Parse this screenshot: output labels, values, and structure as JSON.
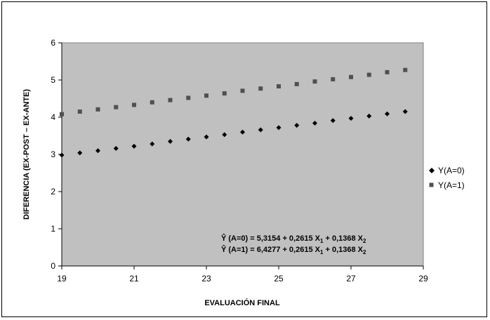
{
  "chart_data": {
    "type": "scatter",
    "title": "",
    "xlabel": "EVALUACIÓN FINAL",
    "ylabel": "DIFERENCIA (EX-POST – EX-ANTE)",
    "xlim": [
      19,
      29
    ],
    "ylim": [
      0,
      6
    ],
    "xticks": [
      "19",
      "21",
      "23",
      "25",
      "27",
      "29"
    ],
    "yticks": [
      "0",
      "1",
      "2",
      "3",
      "4",
      "5",
      "6"
    ],
    "grid": false,
    "legend_position": "right",
    "plot_background": "#c0c0c0",
    "series": [
      {
        "name": "Y(A=0)",
        "marker": "diamond",
        "color": "#000000",
        "x": [
          19,
          19.5,
          20,
          20.5,
          21,
          21.5,
          22,
          22.5,
          23,
          23.5,
          24,
          24.5,
          25,
          25.5,
          26,
          26.5,
          27,
          27.5,
          28,
          28.5
        ],
        "y": [
          2.98,
          3.04,
          3.1,
          3.16,
          3.22,
          3.28,
          3.35,
          3.41,
          3.47,
          3.53,
          3.6,
          3.66,
          3.72,
          3.78,
          3.84,
          3.91,
          3.97,
          4.03,
          4.09,
          4.15
        ]
      },
      {
        "name": "Y(A=1)",
        "marker": "square",
        "color": "#505050",
        "x": [
          19,
          19.5,
          20,
          20.5,
          21,
          21.5,
          22,
          22.5,
          23,
          23.5,
          24,
          24.5,
          25,
          25.5,
          26,
          26.5,
          27,
          27.5,
          28,
          28.5
        ],
        "y": [
          4.08,
          4.15,
          4.21,
          4.27,
          4.33,
          4.4,
          4.46,
          4.52,
          4.58,
          4.64,
          4.71,
          4.77,
          4.83,
          4.89,
          4.96,
          5.02,
          5.08,
          5.14,
          5.21,
          5.27
        ]
      }
    ],
    "annotations": [
      {
        "lhs": "Ŷ (A=0) = 5,3154 + 0,2615 X",
        "mid": " + 0,1368 X",
        "sub1": "1",
        "sub2": "2"
      },
      {
        "lhs": "Ŷ (A=1) = 6,4277 + 0,2615 X",
        "mid": " + 0,1368 X",
        "sub1": "1",
        "sub2": "2"
      }
    ]
  }
}
